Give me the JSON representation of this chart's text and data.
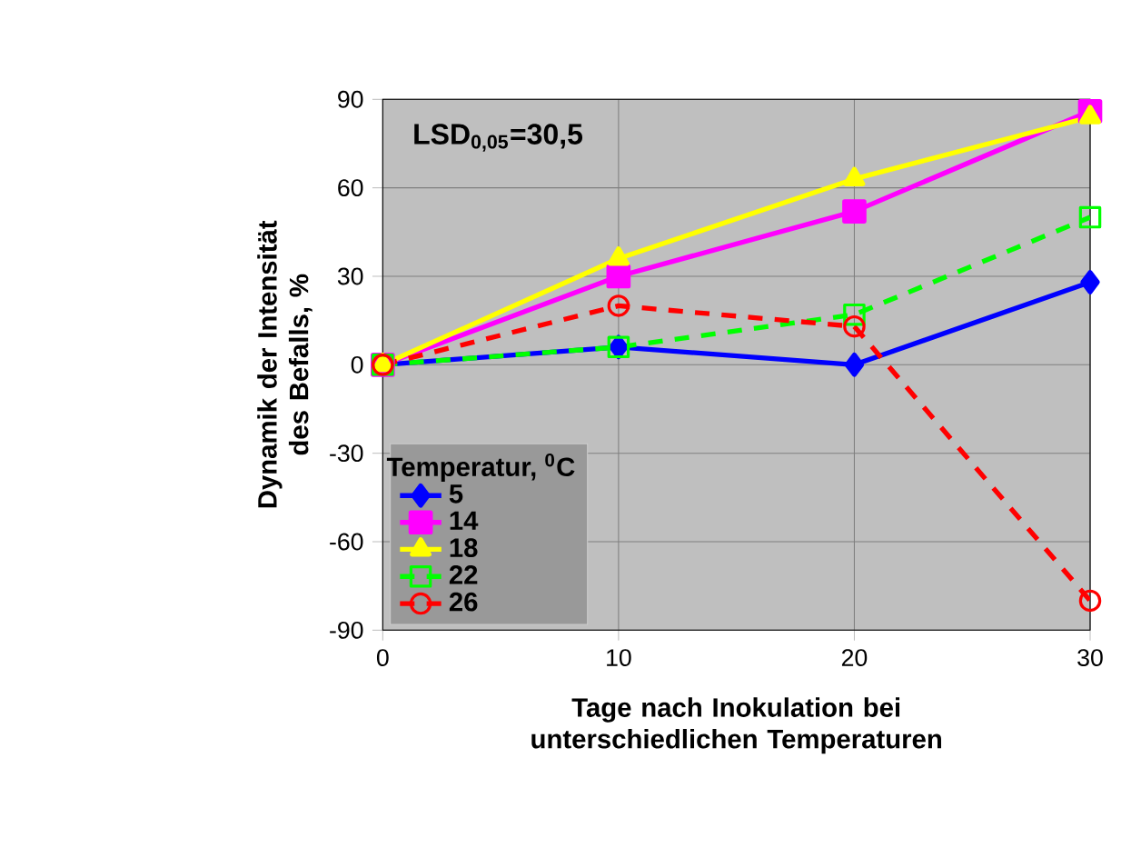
{
  "chart_data": {
    "type": "line",
    "xlabel": "Tage nach Inokulation bei unterschiedlichen Temperaturen",
    "ylabel": "Dynamik der Intensität des Befalls, %",
    "legend_title": "Temperatur, $^{0}$C",
    "annotations": [
      "LSD$_{0,05}$=30,5"
    ],
    "x": [
      0,
      10,
      20,
      30
    ],
    "series": [
      {
        "name": "5",
        "color": "#0000ff",
        "marker": "diamond",
        "line_style": "solid",
        "values": [
          0,
          6,
          0,
          28
        ]
      },
      {
        "name": "14",
        "color": "#ff00ff",
        "marker": "square",
        "line_style": "solid",
        "values": [
          0,
          30,
          52,
          86
        ]
      },
      {
        "name": "18",
        "color": "#ffff00",
        "marker": "triangle",
        "line_style": "solid",
        "values": [
          0,
          36,
          63,
          84
        ]
      },
      {
        "name": "22",
        "color": "#00ff00",
        "marker": "square",
        "line_style": "dashed",
        "values": [
          0,
          6,
          17,
          50
        ]
      },
      {
        "name": "26",
        "color": "#ff0000",
        "marker": "circle",
        "line_style": "dashed",
        "values": [
          0,
          20,
          13,
          -80
        ]
      }
    ],
    "xlim": [
      0,
      30
    ],
    "ylim": [
      -90,
      90
    ],
    "xticks": [
      0,
      10,
      20,
      30
    ],
    "yticks": [
      -90,
      -60,
      -30,
      0,
      30,
      60,
      90
    ],
    "grid": true,
    "legend": "bottom left"
  }
}
